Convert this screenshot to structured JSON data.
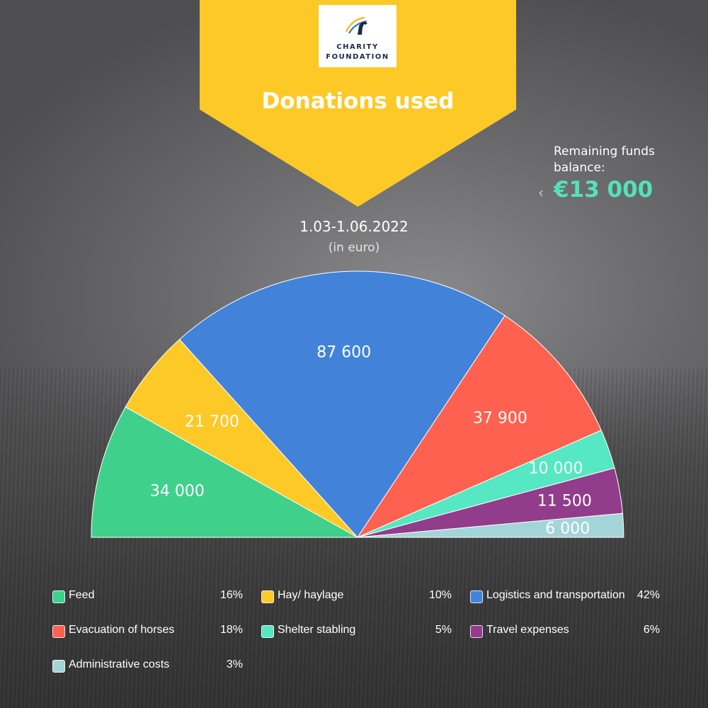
{
  "logo": {
    "line1": "CHARITY",
    "line2": "FOUNDATION"
  },
  "title": "Donations used",
  "remaining": {
    "label": "Remaining funds balance:",
    "value": "€13 000",
    "color": "#52e3bb"
  },
  "period": "1.03-1.06.2022",
  "unit": "(in euro)",
  "chart_data": {
    "type": "pie",
    "subtype": "half-donut",
    "title": "Donations used",
    "categories": [
      "Feed",
      "Hay/ haylage",
      "Logistics and transportation",
      "Evacuation of horses",
      "Shelter stabling",
      "Travel expenses",
      "Administrative costs"
    ],
    "values": [
      34000,
      21700,
      87600,
      37900,
      10000,
      11500,
      6000
    ],
    "value_labels": [
      "34 000",
      "21 700",
      "87 600",
      "37 900",
      "10 000",
      "11 500",
      "6 000"
    ],
    "percentages": [
      "16%",
      "10%",
      "42%",
      "18%",
      "5%",
      "6%",
      "3%"
    ],
    "colors": [
      "#3fd18c",
      "#fdc926",
      "#4283d9",
      "#ff6150",
      "#55e8c2",
      "#923c8c",
      "#a3d4d8"
    ],
    "legend_position": "bottom"
  },
  "legend": [
    {
      "label": "Feed",
      "pct": "16%",
      "color": "#3fd18c"
    },
    {
      "label": "Hay/ haylage",
      "pct": "10%",
      "color": "#fdc926"
    },
    {
      "label": "Logistics and transportation",
      "pct": "42%",
      "color": "#4283d9"
    },
    {
      "label": "Evacuation of horses",
      "pct": "18%",
      "color": "#ff6150"
    },
    {
      "label": "Shelter stabling",
      "pct": "5%",
      "color": "#55e8c2"
    },
    {
      "label": "Travel expenses",
      "pct": "6%",
      "color": "#923c8c"
    },
    {
      "label": "Administrative costs",
      "pct": "3%",
      "color": "#a3d4d8"
    }
  ]
}
